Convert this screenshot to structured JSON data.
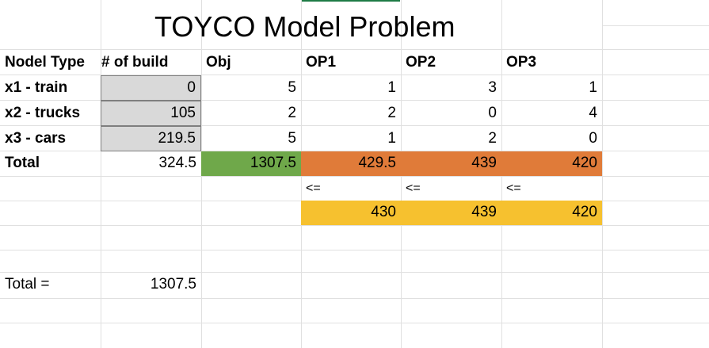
{
  "sheet": {
    "title": "TOYCO Model Problem",
    "headers": [
      "Nodel Type",
      "# of build",
      "Obj",
      "OP1",
      "OP2",
      "OP3"
    ],
    "rows": [
      {
        "label": "x1 - train",
        "build": "0",
        "obj": "5",
        "op1": "1",
        "op2": "3",
        "op3": "1"
      },
      {
        "label": "x2 - trucks",
        "build": "105",
        "obj": "2",
        "op1": "2",
        "op2": "0",
        "op3": "4"
      },
      {
        "label": "x3 - cars",
        "build": "219.5",
        "obj": "5",
        "op1": "1",
        "op2": "2",
        "op3": "0"
      }
    ],
    "total_row": {
      "label": "Total",
      "build": "324.5",
      "obj": "1307.5",
      "op1": "429.5",
      "op2": "439",
      "op3": "420"
    },
    "constraint_signs": [
      "<=",
      "<=",
      "<="
    ],
    "limits": [
      "430",
      "439",
      "420"
    ],
    "summary": {
      "label": "Total =",
      "value": "1307.5"
    },
    "colors": {
      "input_grey": "#d9d9d9",
      "objective_green": "#6fa84a",
      "usage_orange": "#e07b39",
      "limit_yellow": "#f6c12f"
    }
  }
}
